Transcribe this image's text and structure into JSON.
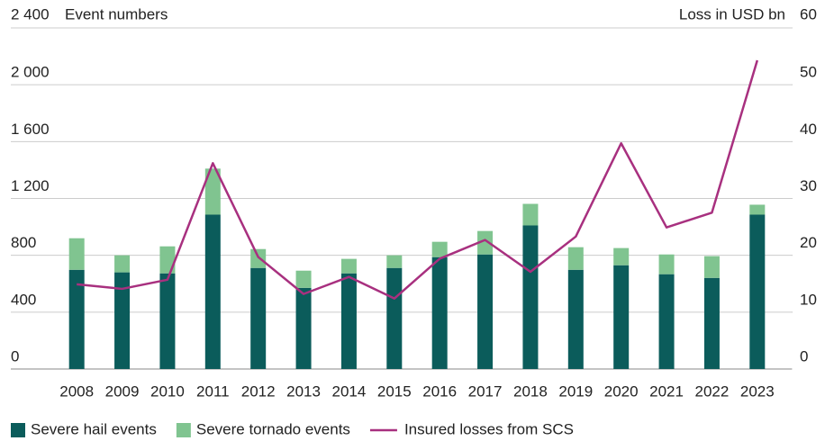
{
  "chart_data": {
    "type": "bar-line",
    "ylabel": "Event numbers",
    "y2label": "Loss in USD bn",
    "categories": [
      "2008",
      "2009",
      "2010",
      "2011",
      "2012",
      "2013",
      "2014",
      "2015",
      "2016",
      "2017",
      "2018",
      "2019",
      "2020",
      "2021",
      "2022",
      "2023"
    ],
    "series": [
      {
        "name": "Severe hail events",
        "type": "bar",
        "color": "#0b5c5b",
        "values": [
          698,
          680,
          673,
          1086,
          711,
          571,
          673,
          711,
          787,
          806,
          1010,
          698,
          730,
          667,
          641,
          1086
        ]
      },
      {
        "name": "Severe tornado events",
        "type": "bar",
        "color": "#80c490",
        "values": [
          222,
          120,
          190,
          324,
          133,
          121,
          102,
          89,
          108,
          165,
          152,
          159,
          121,
          139,
          153,
          70
        ]
      },
      {
        "name": "Insured losses from SCS",
        "type": "line",
        "axis": "y2",
        "color": "#a8307f",
        "values": [
          14.9,
          14.1,
          15.7,
          36.2,
          19.7,
          13.2,
          16.2,
          12.4,
          19.4,
          22.7,
          17.1,
          23.3,
          39.7,
          24.9,
          27.5,
          54.3
        ]
      }
    ],
    "ylim": [
      0,
      2400
    ],
    "yticks": [
      0,
      400,
      800,
      {
        "value": 1200,
        "label": "1 200"
      },
      {
        "value": 1600,
        "label": "1 600"
      },
      {
        "value": 2000,
        "label": "2 000"
      },
      {
        "value": 2400,
        "label": "2 400"
      }
    ],
    "y2lim": [
      0,
      60
    ],
    "y2ticks": [
      0,
      10,
      20,
      30,
      40,
      50,
      60
    ],
    "grid": true,
    "legend": "bottom"
  }
}
